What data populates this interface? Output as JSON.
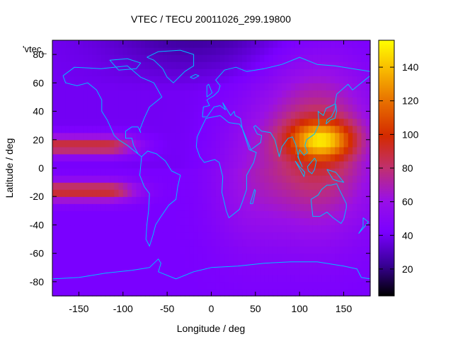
{
  "chart_data": {
    "type": "heatmap",
    "title": "VTEC / TECU 20011026_299.19800",
    "xlabel": "Longitude / deg",
    "ylabel": "Latitude / deg",
    "series_label": "'vtec_",
    "xlim": [
      -180,
      180
    ],
    "ylim": [
      -90,
      90
    ],
    "xticks": [
      -150,
      -100,
      -50,
      0,
      50,
      100,
      150
    ],
    "yticks": [
      -80,
      -60,
      -40,
      -20,
      0,
      20,
      40,
      60,
      80
    ],
    "colorbar": {
      "range": [
        4,
        156
      ],
      "ticks": [
        20,
        40,
        60,
        80,
        100,
        120,
        140
      ],
      "palette": [
        "#000000",
        "#3a0099",
        "#7a00ff",
        "#9a10e6",
        "#c0306f",
        "#d42a00",
        "#e66a00",
        "#f7b400",
        "#ffff00"
      ]
    },
    "grid_shape": [
      36,
      72
    ],
    "features": {
      "background_level": 40,
      "southern_hemisphere_level": 42,
      "polar_north_minimum": 24,
      "main_peak": {
        "lon": 125,
        "lat": 20,
        "value": 152
      },
      "asia_pacific_plateau": {
        "value": 88
      },
      "equatorial_anomaly_crests": {
        "lats": [
          15,
          -15
        ],
        "lon_range": [
          -180,
          -130
        ],
        "value": 90
      },
      "pacific_trough_value": 48
    },
    "map_overlay": "continent-coastlines",
    "grid": false,
    "legend": "top-left"
  }
}
